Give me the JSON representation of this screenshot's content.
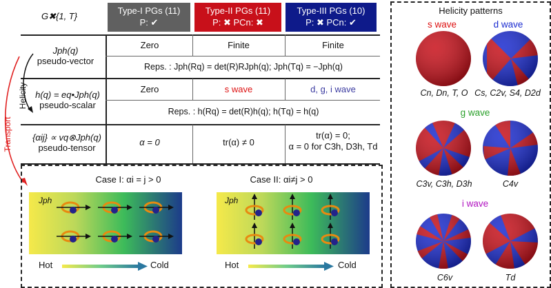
{
  "header": {
    "group_label": "G✖{1, T}",
    "type1": {
      "title": "Type-I PGs (11)",
      "sub": "P: ✔",
      "color": "#606060"
    },
    "type2": {
      "title": "Type-II PGs (11)",
      "sub": "P: ✖   PCn: ✖",
      "color": "#c8101a"
    },
    "type3": {
      "title": "Type-III PGs (10)",
      "sub": "P: ✖   PCn: ✔",
      "color": "#0e1a8a"
    }
  },
  "rows": {
    "jph": {
      "label1": "Jph(q)",
      "label2": "pseudo-vector",
      "c1": "Zero",
      "c2": "Finite",
      "c3": "Finite",
      "reps": "Reps. : Jph(Rq) = det(R)RJph(q);  Jph(Tq) = −Jph(q)"
    },
    "hq": {
      "label1": "h(q) = eq•Jph(q)",
      "label2": "pseudo-scalar",
      "c1": "Zero",
      "c2": "s wave",
      "c3": "d, g, i wave",
      "reps": "Reps. : h(Rq) = det(R)h(q);  h(Tq) = h(q)"
    },
    "alpha": {
      "label1": "{αij} ∝ vq⊗Jph(q)",
      "label2": "pseudo-tensor",
      "c1": "α = 0",
      "c2": "tr(α) ≠ 0",
      "c3a": "tr(α) = 0;",
      "c3b": "α = 0 for C3h, D3h, Td"
    }
  },
  "side_labels": {
    "helicity": "Helicity",
    "transport": "Transport"
  },
  "cases": {
    "case1": {
      "title": "Case I: αi = j > 0",
      "jlabel": "Jph"
    },
    "case2": {
      "title": "Case II: αi≠j > 0",
      "jlabel": "Jph"
    },
    "hot": "Hot",
    "cold": "Cold"
  },
  "helicity": {
    "title": "Helicity patterns",
    "s_wave": "s wave",
    "d_wave": "d wave",
    "g_wave": "g wave",
    "i_wave": "i wave",
    "s_groups": "Cn, Dn, T, O",
    "d_groups": "Cs, C2v, S4, D2d",
    "g_groups1": "C3v, C3h, D3h",
    "g_groups2": "C4v",
    "i_groups1": "C6v",
    "i_groups2": "Td"
  },
  "colors": {
    "red": "#c8101a",
    "blue": "#1a2bd0",
    "yellow": "#f5e94a",
    "green": "#3dbb5a",
    "navy": "#1c3b8a"
  }
}
